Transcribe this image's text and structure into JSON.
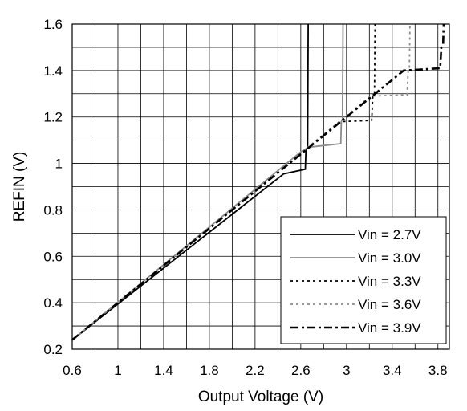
{
  "chart_data": {
    "type": "line",
    "title": "",
    "xlabel": "Output Voltage (V)",
    "ylabel": "REFIN (V)",
    "xlim": [
      0.6,
      3.9
    ],
    "ylim": [
      0.2,
      1.6
    ],
    "x_ticks": [
      0.6,
      1.0,
      1.4,
      1.8,
      2.2,
      2.6,
      3.0,
      3.4,
      3.8
    ],
    "x_tick_labels": [
      "0.6",
      "1",
      "1.4",
      "1.8",
      "2.2",
      "2.6",
      "3",
      "3.4",
      "3.8"
    ],
    "y_ticks": [
      0.2,
      0.4,
      0.6,
      0.8,
      1.0,
      1.2,
      1.4,
      1.6
    ],
    "y_tick_labels": [
      "0.2",
      "0.4",
      "0.6",
      "0.8",
      "1",
      "1.2",
      "1.4",
      "1.6"
    ],
    "grid": true,
    "legend_position": "bottom-right",
    "series": [
      {
        "name": "Vin = 2.7V",
        "color": "#000000",
        "dash": "solid",
        "points": [
          [
            0.6,
            0.24
          ],
          [
            2.45,
            0.955
          ],
          [
            2.64,
            0.975
          ],
          [
            2.645,
            1.06
          ],
          [
            2.66,
            1.07
          ],
          [
            2.665,
            1.6
          ]
        ]
      },
      {
        "name": "Vin = 3.0V",
        "color": "#8c8c8c",
        "dash": "solid",
        "points": [
          [
            0.6,
            0.24
          ],
          [
            2.6,
            1.05
          ],
          [
            2.67,
            1.07
          ],
          [
            2.95,
            1.085
          ],
          [
            2.955,
            1.18
          ],
          [
            2.965,
            1.19
          ],
          [
            2.97,
            1.6
          ]
        ]
      },
      {
        "name": "Vin = 3.3V",
        "color": "#000000",
        "dash": "dotted",
        "points": [
          [
            0.6,
            0.24
          ],
          [
            2.95,
            1.18
          ],
          [
            3.22,
            1.185
          ],
          [
            3.23,
            1.29
          ],
          [
            3.245,
            1.3
          ],
          [
            3.25,
            1.6
          ]
        ]
      },
      {
        "name": "Vin = 3.6V",
        "color": "#8c8c8c",
        "dash": "dotted",
        "points": [
          [
            0.6,
            0.24
          ],
          [
            3.21,
            1.29
          ],
          [
            3.53,
            1.295
          ],
          [
            3.54,
            1.4
          ],
          [
            3.55,
            1.405
          ],
          [
            3.555,
            1.6
          ]
        ]
      },
      {
        "name": "Vin = 3.9V",
        "color": "#000000",
        "dash": "dashdot",
        "points": [
          [
            0.6,
            0.24
          ],
          [
            3.5,
            1.4
          ],
          [
            3.82,
            1.41
          ],
          [
            3.83,
            1.5
          ],
          [
            3.845,
            1.51
          ],
          [
            3.85,
            1.6
          ]
        ]
      }
    ]
  }
}
